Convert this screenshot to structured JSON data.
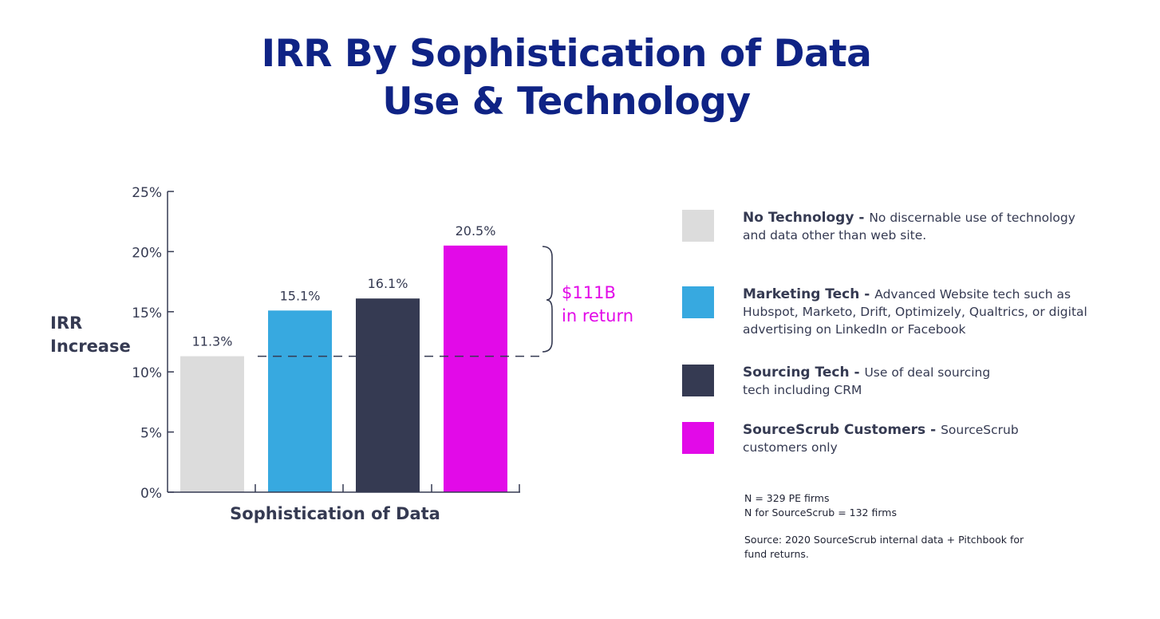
{
  "title": {
    "line1": "IRR By Sophistication of Data",
    "line2": "Use & Technology"
  },
  "chart_data": {
    "type": "bar",
    "categories": [
      "No Technology",
      "Marketing Tech",
      "Sourcing Tech",
      "SourceScrub Customers"
    ],
    "values": [
      11.3,
      15.1,
      16.1,
      20.5
    ],
    "value_labels": [
      "11.3%",
      "15.1%",
      "16.1%",
      "20.5%"
    ],
    "colors": [
      "#dcdcdc",
      "#37a9e0",
      "#353a52",
      "#e20ae8"
    ],
    "ylim": [
      0,
      25
    ],
    "yticks": [
      0,
      5,
      10,
      15,
      20,
      25
    ],
    "ytick_labels": [
      "0%",
      "5%",
      "10%",
      "15%",
      "20%",
      "25%"
    ],
    "xlabel": "Sophistication of Data",
    "ylabel_line1": "IRR",
    "ylabel_line2": "Increase",
    "reference_line": 11.3,
    "grid": false
  },
  "annotation": {
    "line1": "$111B",
    "line2": "in return",
    "color": "#e20ae8"
  },
  "legend": [
    {
      "name": "No Technology - ",
      "desc": "No discernable use of technology and data other than web site.",
      "color": "#dcdcdc"
    },
    {
      "name": "Marketing Tech - ",
      "desc": "Advanced Website tech such as Hubspot, Marketo, Drift, Optimizely, Qualtrics, or digital advertising on LinkedIn or Facebook",
      "color": "#37a9e0"
    },
    {
      "name": "Sourcing Tech - ",
      "desc": "Use of deal sourcing tech including CRM",
      "color": "#353a52"
    },
    {
      "name": "SourceScrub Customers - ",
      "desc": "SourceScrub customers only",
      "color": "#e20ae8"
    }
  ],
  "footnotes": {
    "n1": "N = 329 PE firms",
    "n2": "N for SourceScrub = 132 firms",
    "source": "Source: 2020 SourceScrub internal data + Pitchbook for fund returns."
  }
}
